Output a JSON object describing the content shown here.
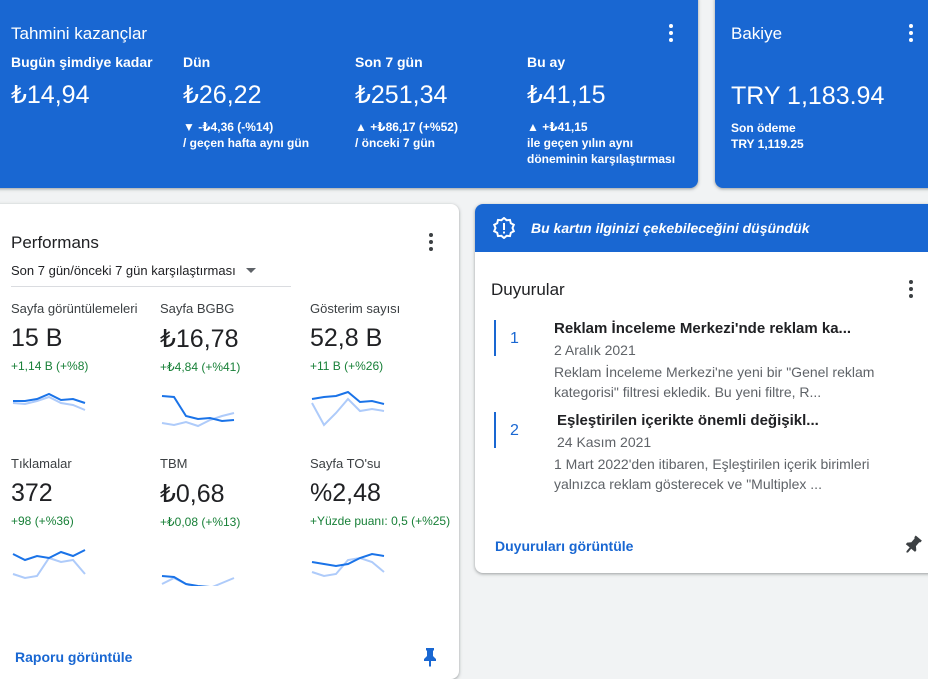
{
  "earnings": {
    "title": "Tahmini kazançlar",
    "metrics": [
      {
        "label": "Bugün şimdiye kadar",
        "value": "₺14,94",
        "change": "",
        "compare": ""
      },
      {
        "label": "Dün",
        "value": "₺26,22",
        "change": "▼ -₺4,36 (-%14)",
        "compare": "/ geçen hafta aynı gün"
      },
      {
        "label": "Son 7 gün",
        "value": "₺251,34",
        "change": "▲ +₺86,17 (+%52)",
        "compare": "/ önceki 7 gün"
      },
      {
        "label": "Bu ay",
        "value": "₺41,15",
        "change": "▲ +₺41,15",
        "compare": "ile geçen yılın aynı döneminin karşılaştırması"
      }
    ]
  },
  "balance": {
    "title": "Bakiye",
    "amount": "TRY 1,183.94",
    "last_payment_label": "Son ödeme",
    "last_payment_value": "TRY 1,119.25"
  },
  "performance": {
    "title": "Performans",
    "period": "Son 7 gün/önceki 7 gün karşılaştırması",
    "tiles": [
      {
        "label": "Sayfa görüntülemeleri",
        "value": "15 B",
        "delta": "+1,14 B (+%8)"
      },
      {
        "label": "Sayfa BGBG",
        "value": "₺16,78",
        "delta": "+₺4,84 (+%41)"
      },
      {
        "label": "Gösterim sayısı",
        "value": "52,8 B",
        "delta": "+11 B (+%26)"
      },
      {
        "label": "Tıklamalar",
        "value": "372",
        "delta": "+98 (+%36)"
      },
      {
        "label": "TBM",
        "value": "₺0,68",
        "delta": "+₺0,08 (+%13)"
      },
      {
        "label": "Sayfa TO'su",
        "value": "%2,48",
        "delta": "+Yüzde puanı: 0,5 (+%25)"
      }
    ],
    "view_report": "Raporu görüntüle",
    "colors": {
      "current": "#1a73e8",
      "previous": "#aecbfa",
      "positive": "#188038"
    }
  },
  "insight": {
    "banner": "Bu kartın ilginizi çekebileceğini düşündük",
    "title": "Duyurular",
    "items": [
      {
        "num": "1",
        "title": "Reklam İnceleme Merkezi'nde reklam ka...",
        "date": "2 Aralık 2021",
        "body": "Reklam İnceleme Merkezi'ne yeni bir \"Genel reklam kategorisi\" filtresi ekledik. Bu yeni filtre, R..."
      },
      {
        "num": "2",
        "title": "Eşleştirilen içerikte önemli değişikl...",
        "date": "24 Kasım 2021",
        "body": "1 Mart 2022'den itibaren, Eşleştirilen içerik birimleri yalnızca reklam gösterecek ve \"Multiplex ..."
      }
    ],
    "view_link": "Duyuruları görüntüle"
  }
}
